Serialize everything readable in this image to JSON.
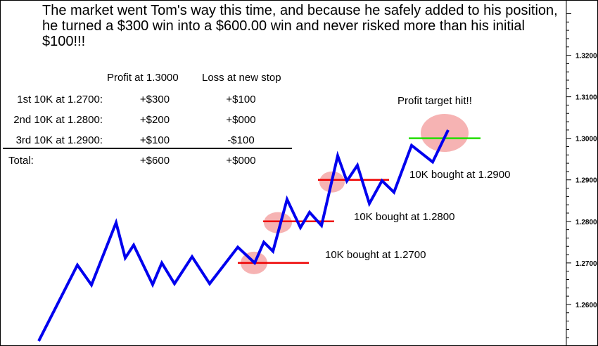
{
  "headline": "The market went Tom's way this time, and because he safely added to his position, he turned a $300 win into a $600.00 win and never risked more than his initial $100!!!",
  "table": {
    "headers": {
      "profit": "Profit at 1.3000",
      "loss": "Loss at new stop"
    },
    "rows": [
      {
        "label": "1st 10K at 1.2700:",
        "profit": "+$300",
        "loss": "+$100"
      },
      {
        "label": "2nd 10K at 1.2800:",
        "profit": "+$200",
        "loss": "+$000"
      },
      {
        "label": "3rd 10K at 1.2900:",
        "profit": "+$100",
        "loss": "-$100"
      }
    ],
    "total": {
      "label": "Total:",
      "profit": "+$600",
      "loss": "+$000"
    }
  },
  "annotations": {
    "target": "Profit target hit!!",
    "buy3": "10K bought at 1.2900",
    "buy2": "10K bought at 1.2800",
    "buy1": "10K bought at 1.2700"
  },
  "chart_data": {
    "type": "line",
    "y_ticks": [
      1.26,
      1.27,
      1.28,
      1.29,
      1.3,
      1.31,
      1.32
    ],
    "y_tick_labels": [
      "1.2600",
      "1.2700",
      "1.2800",
      "1.2900",
      "1.3000",
      "1.3100",
      "1.3200"
    ],
    "ylim": [
      1.25,
      1.3333
    ],
    "grid": false,
    "series": [
      {
        "color": "#0000ee",
        "values": [
          1.2512,
          1.2695,
          1.2647,
          1.2797,
          1.2712,
          1.2743,
          1.2648,
          1.27,
          1.265,
          1.2715,
          1.265,
          1.2738,
          1.27,
          1.275,
          1.2728,
          1.2853,
          1.2785,
          1.2822,
          1.279,
          1.2958,
          1.2897,
          1.2935,
          1.2843,
          1.2898,
          1.287,
          1.2983,
          1.2943,
          1.302
        ]
      }
    ],
    "levels": [
      {
        "y": 1.27,
        "color": "#ee0000"
      },
      {
        "y": 1.28,
        "color": "#ee0000"
      },
      {
        "y": 1.29,
        "color": "#ee0000"
      },
      {
        "y": 1.3,
        "color": "#22dd00"
      }
    ],
    "highlight_color": "#f4a6a6"
  }
}
